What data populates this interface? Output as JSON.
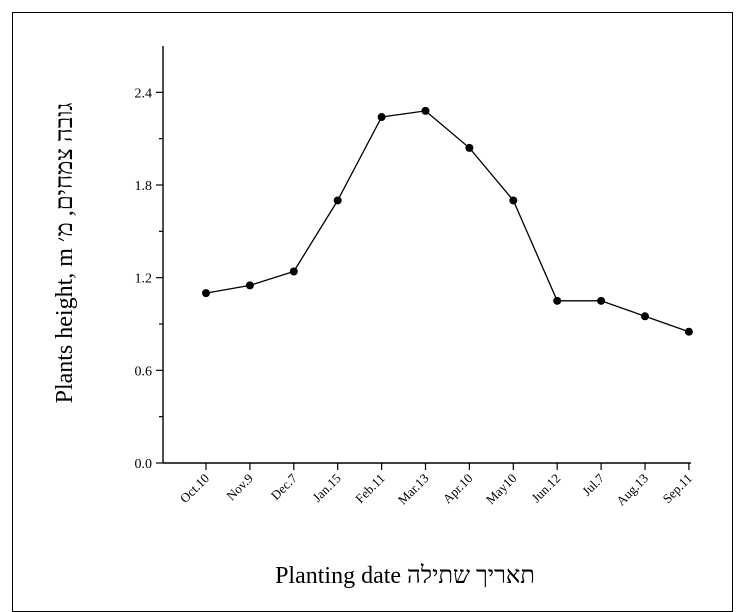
{
  "chart_data": {
    "type": "line",
    "xlabel": "Planting date  תאריך שתילה",
    "ylabel": "Plants height, m  גובה צמחים, מ׳",
    "ylim": [
      0,
      2.7
    ],
    "y_ticks": [
      "0.0",
      "0.6",
      "1.2",
      "1.8",
      "2.4"
    ],
    "y_tick_values": [
      0,
      0.6,
      1.2,
      1.8,
      2.4
    ],
    "grid": false,
    "categories": [
      "Oct.10",
      "Nov.9",
      "Dec.7",
      "Jan.15",
      "Feb.11",
      "Mar.13",
      "Apr.10",
      "May10",
      "Jun.12",
      "Jul.7",
      "Aug.13",
      "Sep.11"
    ],
    "series": [
      {
        "values": [
          1.1,
          1.15,
          1.24,
          1.7,
          2.24,
          2.28,
          2.04,
          1.7,
          1.05,
          1.05,
          0.95,
          0.85
        ]
      }
    ]
  }
}
